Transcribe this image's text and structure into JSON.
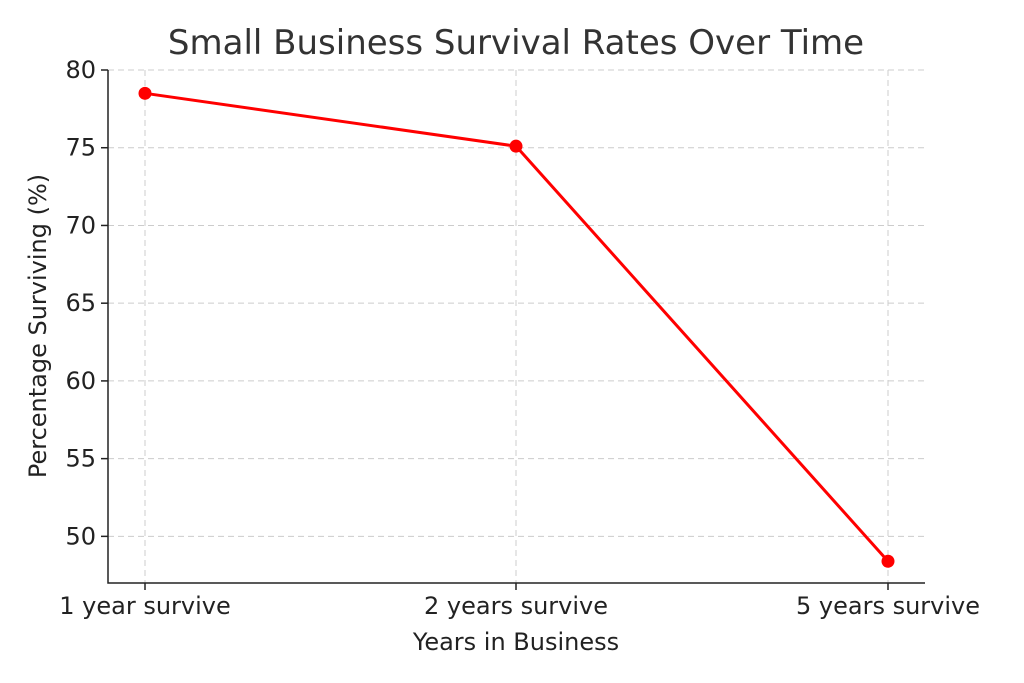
{
  "chart_data": {
    "type": "line",
    "title": "Small Business Survival Rates Over Time",
    "xlabel": "Years in Business",
    "ylabel": "Percentage Surviving (%)",
    "categories": [
      "1 year survive",
      "2 years survive",
      "5 years survive"
    ],
    "series": [
      {
        "values": [
          78.5,
          75.1,
          48.4
        ]
      }
    ],
    "ylim": [
      47,
      80
    ],
    "yticks": [
      50,
      55,
      60,
      65,
      70,
      75,
      80
    ],
    "grid": true,
    "colors": {
      "line": "#ff0000",
      "marker": "#ff0000"
    }
  }
}
